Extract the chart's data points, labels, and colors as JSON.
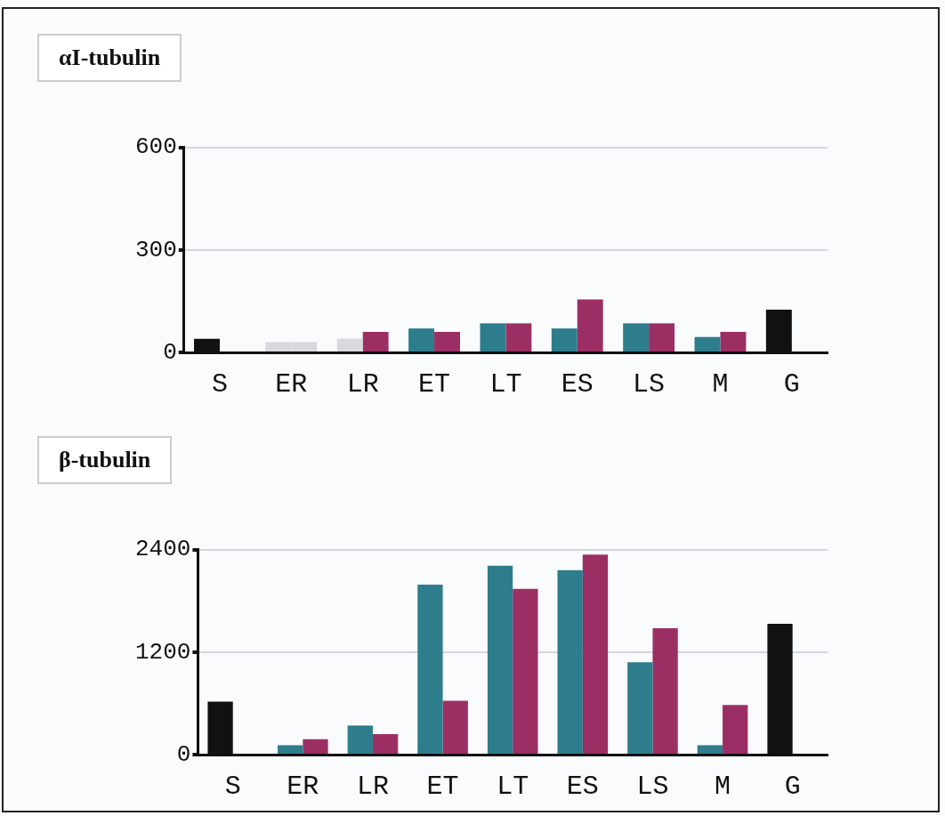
{
  "chart_data": [
    {
      "type": "bar",
      "title": "αI-tubulin",
      "categories": [
        "S",
        "ER",
        "LR",
        "ET",
        "LT",
        "ES",
        "LS",
        "M",
        "G"
      ],
      "ylim": [
        0,
        600
      ],
      "yticks": [
        0,
        300,
        600
      ],
      "grid": "y",
      "series": [
        {
          "values": [
            40,
            30,
            40,
            70,
            85,
            70,
            85,
            45,
            125
          ],
          "colors": [
            "#111111",
            "#d8d8de",
            "#d8d8de",
            "#2e7d8c",
            "#2e7d8c",
            "#2e7d8c",
            "#2e7d8c",
            "#2e7d8c",
            "#111111"
          ]
        },
        {
          "values": [
            null,
            30,
            60,
            60,
            85,
            155,
            85,
            60,
            null
          ],
          "colors": [
            "#9b2f63",
            "#d8d8de",
            "#9b2f63",
            "#9b2f63",
            "#9b2f63",
            "#9b2f63",
            "#9b2f63",
            "#9b2f63",
            "#9b2f63"
          ]
        }
      ]
    },
    {
      "type": "bar",
      "title": "β-tubulin",
      "categories": [
        "S",
        "ER",
        "LR",
        "ET",
        "LT",
        "ES",
        "LS",
        "M",
        "G"
      ],
      "ylim": [
        0,
        2400
      ],
      "yticks": [
        0,
        1200,
        2400
      ],
      "grid": "y",
      "series": [
        {
          "values": [
            620,
            110,
            340,
            1990,
            2210,
            2160,
            1080,
            110,
            1530
          ],
          "colors": [
            "#111111",
            "#2e7d8c",
            "#2e7d8c",
            "#2e7d8c",
            "#2e7d8c",
            "#2e7d8c",
            "#2e7d8c",
            "#2e7d8c",
            "#111111"
          ]
        },
        {
          "values": [
            null,
            180,
            240,
            630,
            1940,
            2340,
            1480,
            580,
            null
          ],
          "colors": [
            "#9b2f63",
            "#9b2f63",
            "#9b2f63",
            "#9b2f63",
            "#9b2f63",
            "#9b2f63",
            "#9b2f63",
            "#9b2f63",
            "#9b2f63"
          ]
        }
      ]
    }
  ]
}
